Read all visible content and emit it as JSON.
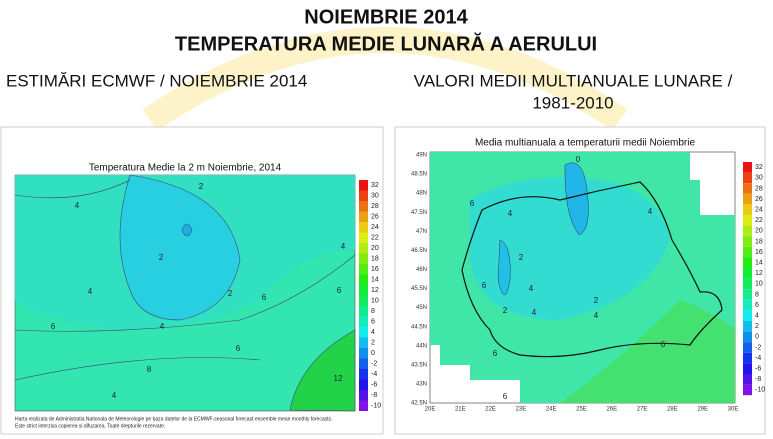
{
  "header": {
    "title": "NOIEMBRIE 2014",
    "subtitle": "TEMPERATURA MEDIE LUNARĂ A AERULUI"
  },
  "left_panel": {
    "heading": "ESTIMĂRI ECMWF / NOIEMBRIE 2014",
    "map_title": "Temperatura Medie la 2 m Noiembrie, 2014",
    "colorbar": [
      32,
      30,
      28,
      26,
      24,
      22,
      20,
      18,
      16,
      14,
      12,
      10,
      8,
      6,
      4,
      2,
      0,
      -2,
      -4,
      -6,
      -8,
      -10
    ],
    "contour_labels": [
      2,
      4,
      2,
      2,
      4,
      4,
      6,
      4,
      6,
      6,
      6,
      8,
      4,
      12
    ],
    "footer": [
      "Harta realizata de Administratia Nationala de Meteorologie pe baza datelor de la ECMWF-seasonal forecast ensemble mean monthly forecasts.",
      "Este strict interzisa copierea si difuzarea. Toate drepturile rezervate."
    ]
  },
  "right_panel": {
    "heading": [
      "VALORI MEDII MULTIANUALE LUNARE /",
      "1981-2010"
    ],
    "map_title": "Media multianuala a temperaturii medii Noiembrie",
    "latitudes": [
      "49N",
      "48.5N",
      "48N",
      "47.5N",
      "47N",
      "46.5N",
      "46N",
      "45.5N",
      "45N",
      "44.5N",
      "44N",
      "43.5N",
      "43N",
      "42.5N"
    ],
    "longitudes": [
      "20E",
      "21E",
      "22E",
      "23E",
      "24E",
      "25E",
      "26E",
      "27E",
      "28E",
      "29E",
      "30E"
    ],
    "colorbar": [
      32,
      30,
      28,
      26,
      24,
      22,
      20,
      18,
      16,
      14,
      12,
      10,
      8,
      6,
      4,
      2,
      0,
      -2,
      -4,
      -6,
      -8,
      -10
    ],
    "contour_labels": [
      0,
      6,
      4,
      4,
      2,
      6,
      4,
      2,
      4,
      2,
      4,
      6,
      6,
      6
    ]
  }
}
